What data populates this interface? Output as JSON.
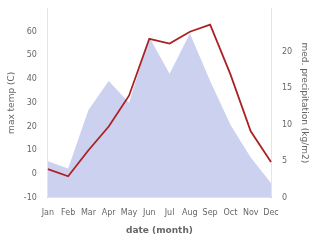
{
  "chart_data": {
    "type": "line",
    "categories": [
      "Jan",
      "Feb",
      "Mar",
      "Apr",
      "May",
      "Jun",
      "Jul",
      "Aug",
      "Sep",
      "Oct",
      "Nov",
      "Dec"
    ],
    "xlabel": "date (month)",
    "ylabel": "max temp (C)",
    "y2label": "med. precipitation (kg/m2)",
    "series": [
      {
        "type": "area",
        "axis": "y2",
        "color": "#b0b8e8",
        "values": [
          5.0,
          4.0,
          12.0,
          16.0,
          13.0,
          22.0,
          17.0,
          22.5,
          16.0,
          10.0,
          5.5,
          2.0
        ]
      },
      {
        "type": "line",
        "color": "#aa2222",
        "values": [
          2,
          -1,
          10,
          20,
          33,
          57,
          55,
          60,
          63,
          42,
          18,
          5
        ]
      }
    ],
    "ylim": [
      -10,
      70
    ],
    "yticks": [
      -10,
      0,
      10,
      20,
      30,
      40,
      50,
      60
    ],
    "y2lim": [
      0,
      26.0
    ],
    "y2ticks": [
      0,
      5,
      10,
      15,
      20
    ],
    "grid": false
  }
}
